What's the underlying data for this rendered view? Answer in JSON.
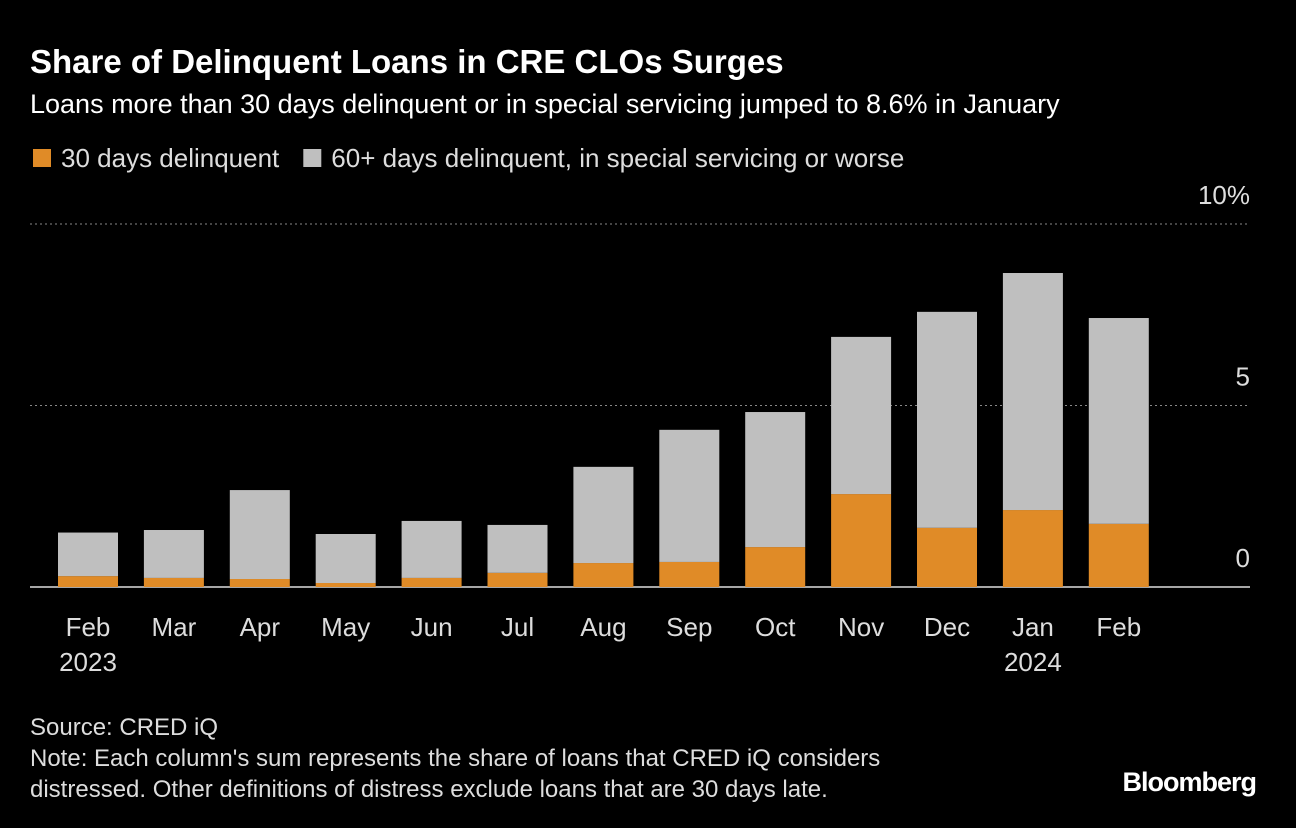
{
  "chart_data": {
    "type": "stacked_bar",
    "title": "Share of Delinquent Loans in CRE CLOs Surges",
    "subtitle": "Loans more than 30 days delinquent or in special servicing jumped to 8.6% in January",
    "categories": [
      "Feb",
      "Mar",
      "Apr",
      "May",
      "Jun",
      "Jul",
      "Aug",
      "Sep",
      "Oct",
      "Nov",
      "Dec",
      "Jan",
      "Feb"
    ],
    "year_labels": [
      "2023",
      null,
      null,
      null,
      null,
      null,
      null,
      null,
      null,
      null,
      null,
      "2024",
      null
    ],
    "series": [
      {
        "name": "30 days delinquent",
        "color": "#e08b27",
        "values": [
          0.3,
          0.25,
          0.22,
          0.11,
          0.25,
          0.39,
          0.66,
          0.69,
          1.1,
          2.56,
          1.63,
          2.12,
          1.74
        ]
      },
      {
        "name": "60+ days delinquent, in special servicing or worse",
        "color": "#bfbfbf",
        "values": [
          1.2,
          1.32,
          2.45,
          1.35,
          1.57,
          1.32,
          2.65,
          3.64,
          3.72,
          4.33,
          5.95,
          6.53,
          5.67
        ]
      }
    ],
    "ylim": [
      0,
      10
    ],
    "yticks": [
      0,
      5,
      {
        "value": 10,
        "label": "10%"
      }
    ],
    "grid": true,
    "source": "Source: CRED iQ",
    "note_lines": [
      "Note: Each column's sum represents the share of loans that CRED iQ considers",
      "distressed. Other definitions of distress exclude loans that are 30 days late."
    ],
    "branding": "Bloomberg"
  }
}
